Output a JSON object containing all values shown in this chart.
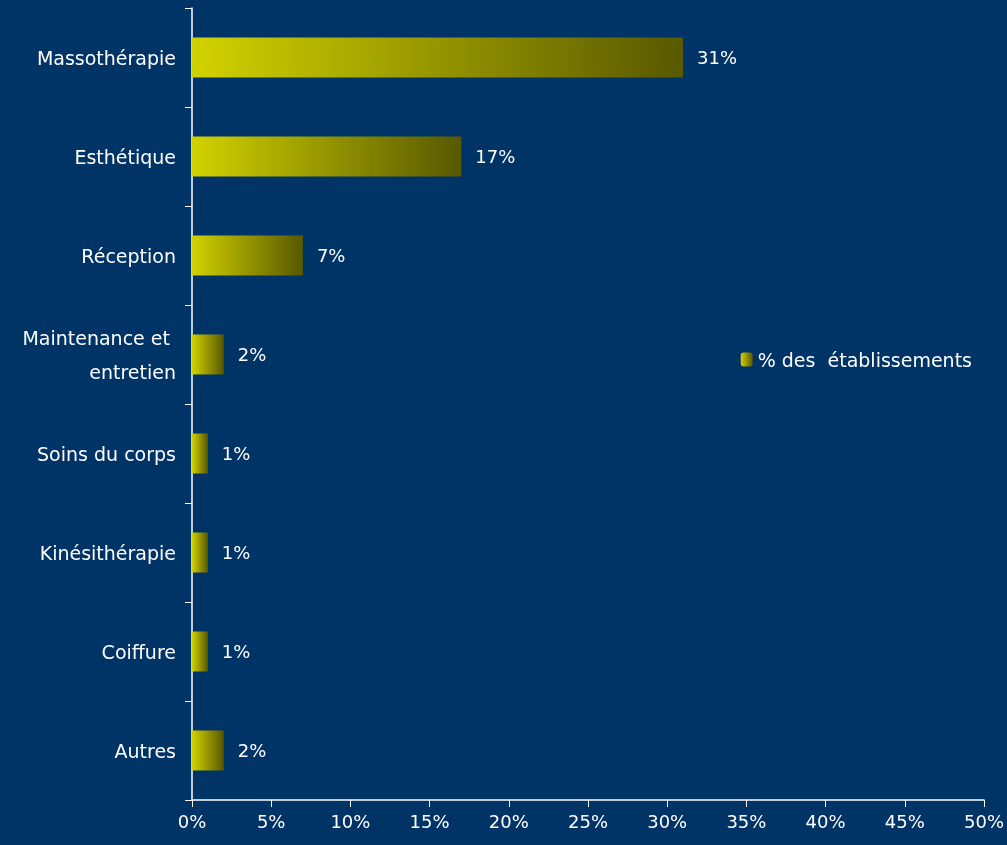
{
  "chart_data": {
    "type": "bar",
    "orientation": "horizontal",
    "categories": [
      "Massothérapie",
      "Esthétique",
      "Réception",
      "Maintenance et entretien",
      "Soins du corps",
      "Kinésithérapie",
      "Coiffure",
      "Autres"
    ],
    "series": [
      {
        "name": "% des  établissements",
        "color": "#d2d200",
        "values": [
          31,
          17,
          7,
          2,
          1,
          1,
          1,
          2
        ],
        "value_labels": [
          "31%",
          "17%",
          "7%",
          "2%",
          "1%",
          "1%",
          "1%",
          "2%"
        ]
      }
    ],
    "xlim": [
      0,
      50
    ],
    "xticks": [
      {
        "value": 0,
        "label": "0%"
      },
      {
        "value": 5,
        "label": "5%"
      },
      {
        "value": 10,
        "label": "10%"
      },
      {
        "value": 15,
        "label": "15%"
      },
      {
        "value": 20,
        "label": "20%"
      },
      {
        "value": 25,
        "label": "25%"
      },
      {
        "value": 30,
        "label": "30%"
      },
      {
        "value": 35,
        "label": "35%"
      },
      {
        "value": 40,
        "label": "40%"
      },
      {
        "value": 45,
        "label": "45%"
      },
      {
        "value": 50,
        "label": "50%"
      }
    ],
    "grid": false,
    "legend": "right"
  }
}
